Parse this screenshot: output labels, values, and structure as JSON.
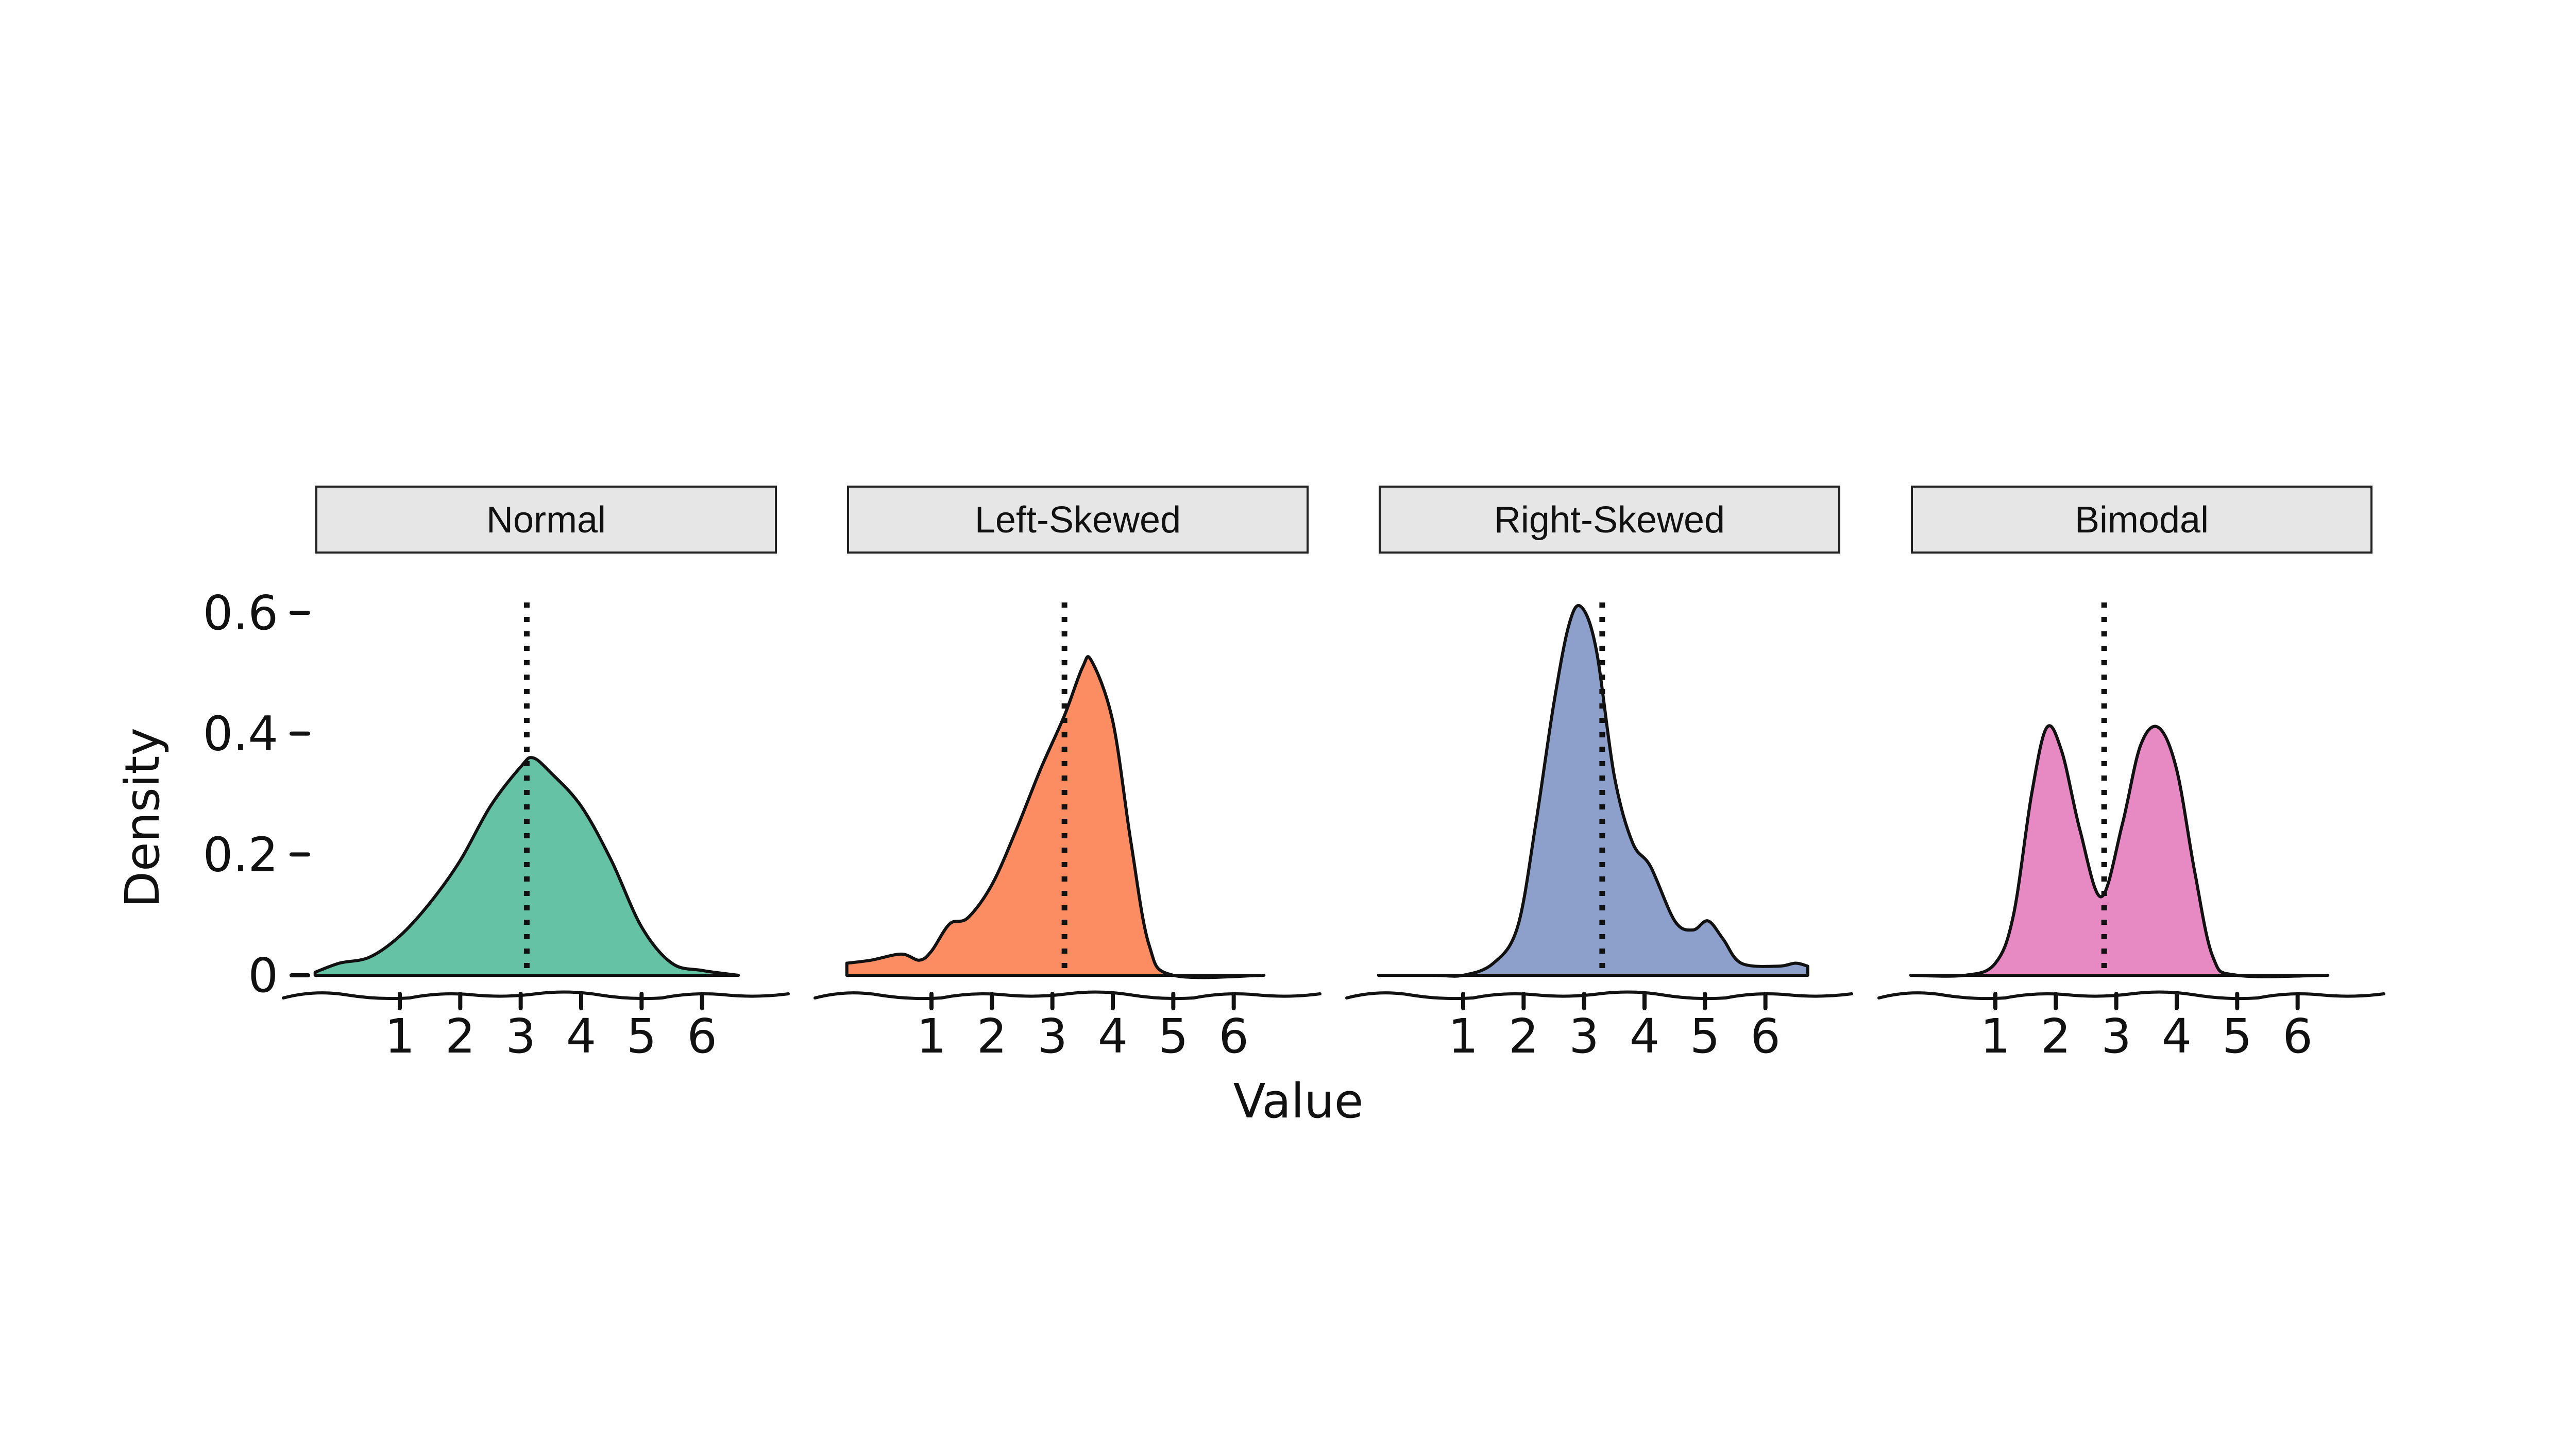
{
  "chart_data": {
    "type": "area",
    "xlabel": "Value",
    "ylabel": "Density",
    "x_ticks": [
      1,
      2,
      3,
      4,
      5,
      6
    ],
    "y_ticks": [
      {
        "value": 0,
        "label": "0"
      },
      {
        "value": 0.2,
        "label": "0.2"
      },
      {
        "value": 0.4,
        "label": "0.4"
      },
      {
        "value": 0.6,
        "label": "0.6"
      }
    ],
    "ylim": [
      0,
      0.6
    ],
    "xlim": [
      -0.5,
      7.0
    ],
    "grid": false,
    "legend": "none",
    "panels": [
      {
        "name": "Normal",
        "color": "#66C2A5",
        "mean": 3.1,
        "points": [
          [
            -0.4,
            0.005
          ],
          [
            0,
            0.02
          ],
          [
            0.5,
            0.03
          ],
          [
            1,
            0.065
          ],
          [
            1.5,
            0.12
          ],
          [
            2,
            0.19
          ],
          [
            2.5,
            0.28
          ],
          [
            3,
            0.345
          ],
          [
            3.2,
            0.36
          ],
          [
            3.5,
            0.335
          ],
          [
            4,
            0.28
          ],
          [
            4.5,
            0.19
          ],
          [
            5,
            0.08
          ],
          [
            5.5,
            0.02
          ],
          [
            6,
            0.008
          ],
          [
            6.6,
            0.0
          ]
        ]
      },
      {
        "name": "Left-Skewed",
        "color": "#FC8D62",
        "mean": 3.2,
        "points": [
          [
            -0.4,
            0.02
          ],
          [
            0,
            0.025
          ],
          [
            0.5,
            0.035
          ],
          [
            0.8,
            0.025
          ],
          [
            1,
            0.04
          ],
          [
            1.3,
            0.085
          ],
          [
            1.6,
            0.095
          ],
          [
            2,
            0.15
          ],
          [
            2.4,
            0.24
          ],
          [
            2.8,
            0.34
          ],
          [
            3.2,
            0.43
          ],
          [
            3.5,
            0.51
          ],
          [
            3.65,
            0.52
          ],
          [
            4,
            0.42
          ],
          [
            4.3,
            0.22
          ],
          [
            4.6,
            0.05
          ],
          [
            5,
            0.0
          ],
          [
            6.5,
            0.0
          ]
        ]
      },
      {
        "name": "Right-Skewed",
        "color": "#8DA0CB",
        "mean": 3.3,
        "points": [
          [
            -0.4,
            0.0
          ],
          [
            0.5,
            0.0
          ],
          [
            1,
            0.0
          ],
          [
            1.5,
            0.02
          ],
          [
            1.9,
            0.08
          ],
          [
            2.2,
            0.25
          ],
          [
            2.5,
            0.45
          ],
          [
            2.75,
            0.58
          ],
          [
            2.95,
            0.61
          ],
          [
            3.2,
            0.54
          ],
          [
            3.5,
            0.33
          ],
          [
            3.8,
            0.22
          ],
          [
            4.1,
            0.18
          ],
          [
            4.5,
            0.09
          ],
          [
            4.8,
            0.075
          ],
          [
            5.05,
            0.09
          ],
          [
            5.3,
            0.06
          ],
          [
            5.6,
            0.02
          ],
          [
            6.2,
            0.015
          ],
          [
            6.5,
            0.02
          ],
          [
            6.7,
            0.015
          ]
        ]
      },
      {
        "name": "Bimodal",
        "color": "#E78AC3",
        "mean": 2.8,
        "points": [
          [
            -0.4,
            0.0
          ],
          [
            0.5,
            0.0
          ],
          [
            1,
            0.02
          ],
          [
            1.3,
            0.1
          ],
          [
            1.6,
            0.3
          ],
          [
            1.85,
            0.41
          ],
          [
            2.1,
            0.37
          ],
          [
            2.4,
            0.24
          ],
          [
            2.75,
            0.13
          ],
          [
            3.1,
            0.25
          ],
          [
            3.4,
            0.38
          ],
          [
            3.7,
            0.41
          ],
          [
            4,
            0.34
          ],
          [
            4.3,
            0.17
          ],
          [
            4.6,
            0.03
          ],
          [
            5,
            0.0
          ],
          [
            6.5,
            0.0
          ]
        ]
      }
    ]
  }
}
